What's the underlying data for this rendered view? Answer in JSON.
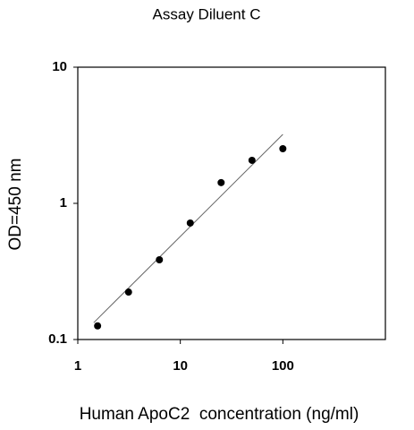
{
  "chart_data": {
    "type": "scatter",
    "title": "Assay Diluent C",
    "xlabel": "Human ApoC2  concentration (ng/ml)",
    "ylabel": "OD=450 nm",
    "x": [
      1.56,
      3.125,
      6.25,
      12.5,
      25,
      50,
      100
    ],
    "values": [
      0.126,
      0.223,
      0.385,
      0.717,
      1.42,
      2.07,
      2.52
    ],
    "color": "#000000",
    "trendline": {
      "x": [
        1.43,
        100
      ],
      "y": [
        0.133,
        3.21
      ],
      "color": "#666666"
    },
    "xscale": "log",
    "yscale": "log",
    "xlim": [
      1,
      1000
    ],
    "ylim": [
      0.1,
      10
    ],
    "xticks": [
      1,
      10,
      100
    ],
    "yticks": [
      0.1,
      1,
      10
    ],
    "grid": false
  }
}
